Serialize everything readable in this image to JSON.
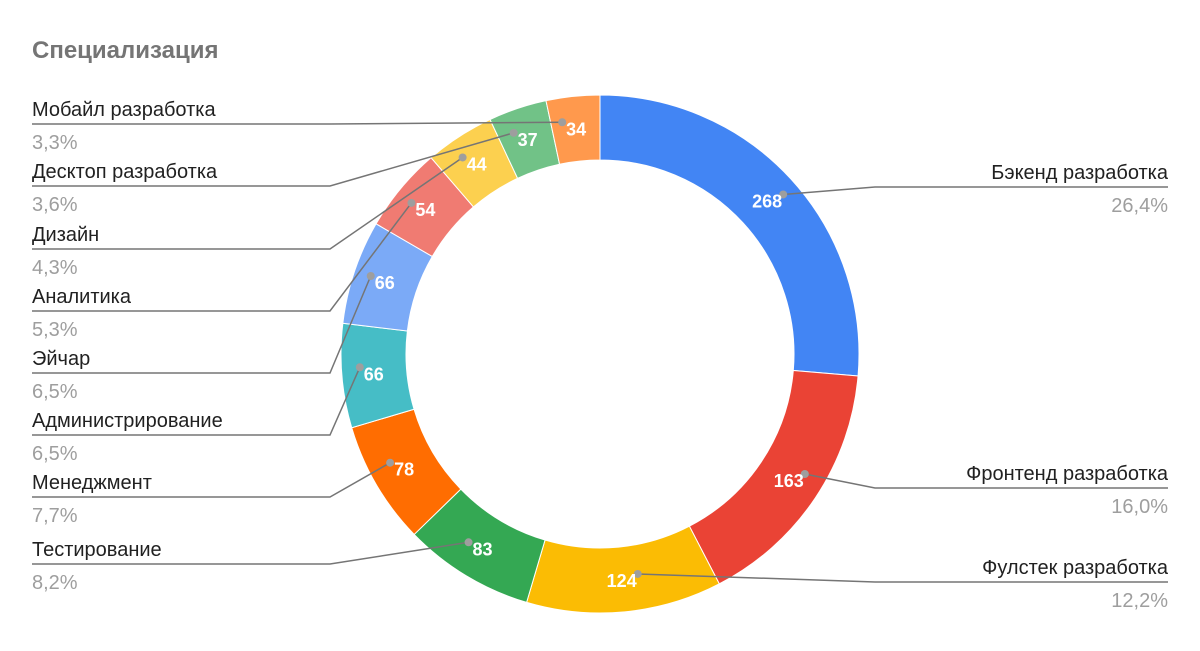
{
  "chart_data": {
    "type": "donut",
    "title": "Специализация",
    "categories": [
      "Бэкенд разработка",
      "Фронтенд разработка",
      "Фулстек разработка",
      "Тестирование",
      "Менеджмент",
      "Администрирование",
      "Эйчар",
      "Аналитика",
      "Дизайн",
      "Десктоп разработка",
      "Мобайл разработка"
    ],
    "values": [
      268,
      163,
      124,
      83,
      78,
      66,
      66,
      54,
      44,
      37,
      34
    ],
    "percent_labels": [
      "26,4%",
      "16,0%",
      "12,2%",
      "8,2%",
      "7,7%",
      "6,5%",
      "6,5%",
      "5,3%",
      "4,3%",
      "3,6%",
      "3,3%"
    ],
    "colors": [
      "#4285f4",
      "#ea4335",
      "#fbbc04",
      "#34a853",
      "#ff6d01",
      "#46bdc6",
      "#7baaf7",
      "#f07b72",
      "#fcd04f",
      "#71c287",
      "#ff994d"
    ]
  }
}
